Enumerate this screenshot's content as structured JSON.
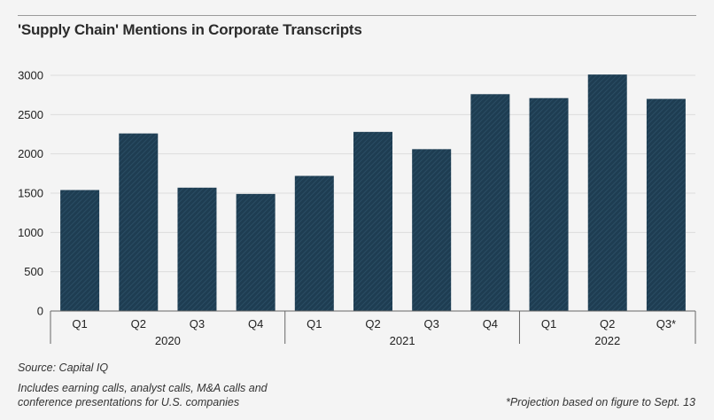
{
  "title": "'Supply Chain' Mentions in Corporate Transcripts",
  "source": "Source: Capital IQ",
  "description_line1": "Includes earning calls, analyst calls, M&A calls and",
  "description_line2": "conference presentations for U.S. companies",
  "footnote": "*Projection based on figure to Sept. 13",
  "colors": {
    "bar": "#1e3d52",
    "bar_stripe": "#2d5068",
    "grid": "#dcdcdc",
    "axis": "#666666"
  },
  "chart_data": {
    "type": "bar",
    "title": "'Supply Chain' Mentions in Corporate Transcripts",
    "xlabel": "",
    "ylabel": "",
    "ylim": [
      0,
      3000
    ],
    "yticks": [
      0,
      500,
      1000,
      1500,
      2000,
      2500,
      3000
    ],
    "categories": [
      "Q1",
      "Q2",
      "Q3",
      "Q4",
      "Q1",
      "Q2",
      "Q3",
      "Q4",
      "Q1",
      "Q2",
      "Q3*"
    ],
    "groups": [
      {
        "label": "2020",
        "count": 4
      },
      {
        "label": "2021",
        "count": 4
      },
      {
        "label": "2022",
        "count": 3
      }
    ],
    "values": [
      1540,
      2260,
      1570,
      1490,
      1720,
      2280,
      2060,
      2760,
      2710,
      3010,
      2700
    ],
    "grid": true,
    "legend": "none"
  }
}
